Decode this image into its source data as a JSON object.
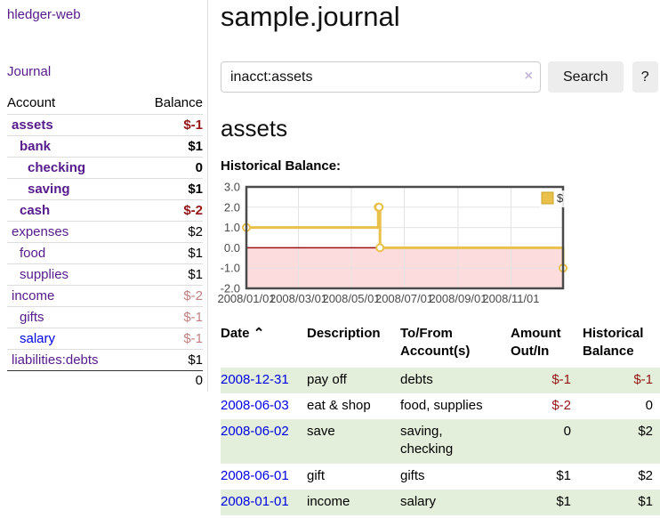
{
  "sidebar": {
    "app_title": "hledger-web",
    "journal_label": "Journal",
    "accounts_header": {
      "account": "Account",
      "balance": "Balance"
    },
    "accounts": [
      {
        "name": "assets",
        "level": 1,
        "bold": true,
        "link": "visited",
        "balance": "$-1",
        "neg": "strong"
      },
      {
        "name": "bank",
        "level": 2,
        "bold": true,
        "link": "visited",
        "balance": "$1"
      },
      {
        "name": "checking",
        "level": 3,
        "bold": true,
        "link": "visited",
        "balance": "0"
      },
      {
        "name": "saving",
        "level": 3,
        "bold": true,
        "link": "visited",
        "balance": "$1"
      },
      {
        "name": "cash",
        "level": 2,
        "bold": true,
        "link": "visited",
        "balance": "$-2",
        "neg": "strong"
      },
      {
        "name": "expenses",
        "level": 1,
        "bold": false,
        "link": "visited",
        "balance": "$2"
      },
      {
        "name": "food",
        "level": 2,
        "bold": false,
        "link": "visited",
        "balance": "$1"
      },
      {
        "name": "supplies",
        "level": 2,
        "bold": false,
        "link": "visited",
        "balance": "$1"
      },
      {
        "name": "income",
        "level": 1,
        "bold": false,
        "link": "visited",
        "balance": "$-2",
        "neg": "soft"
      },
      {
        "name": "gifts",
        "level": 2,
        "bold": false,
        "link": "visited",
        "balance": "$-1",
        "neg": "soft"
      },
      {
        "name": "salary",
        "level": 2,
        "bold": false,
        "link": "unvisited",
        "balance": "$-1",
        "neg": "soft"
      },
      {
        "name": "liabilities:debts",
        "level": 1,
        "bold": false,
        "link": "visited",
        "balance": "$1"
      }
    ],
    "total": "0"
  },
  "main": {
    "title": "sample.journal",
    "search": {
      "value": "inacct:assets",
      "clear_icon": "×",
      "button_label": "Search",
      "help_label": "?"
    },
    "account_heading": "assets",
    "register": {
      "headers": {
        "date": "Date",
        "sort_icon": "⌃",
        "description": "Description",
        "accounts": "To/From Account(s)",
        "amount": "Amount Out/In",
        "balance": "Historical Balance"
      },
      "rows": [
        {
          "date": "2008-12-31",
          "description": "pay off",
          "accounts": "debts",
          "amount": "$-1",
          "balance": "$-1"
        },
        {
          "date": "2008-06-03",
          "description": "eat & shop",
          "accounts": "food, supplies",
          "amount": "$-2",
          "balance": "0"
        },
        {
          "date": "2008-06-02",
          "description": "save",
          "accounts": "saving, checking",
          "amount": "0",
          "balance": "$2"
        },
        {
          "date": "2008-06-01",
          "description": "gift",
          "accounts": "gifts",
          "amount": "$1",
          "balance": "$2"
        },
        {
          "date": "2008-01-01",
          "description": "income",
          "accounts": "salary",
          "amount": "$1",
          "balance": "$1"
        }
      ]
    }
  },
  "chart_data": {
    "type": "line",
    "step": true,
    "title": "Historical Balance:",
    "xlim": [
      "2008-01-01",
      "2008-12-31"
    ],
    "ylim": [
      -2,
      3
    ],
    "y_ticks": [
      3,
      2,
      1,
      0,
      -1,
      -2
    ],
    "x_ticks": [
      "2008/01/01",
      "2008/03/01",
      "2008/05/01",
      "2008/07/01",
      "2008/09/01",
      "2008/11/01"
    ],
    "series": [
      {
        "name": "$",
        "color": "#e8c04a",
        "points": [
          [
            "2008-01-01",
            1
          ],
          [
            "2008-06-01",
            2
          ],
          [
            "2008-06-02",
            2
          ],
          [
            "2008-06-03",
            0
          ],
          [
            "2008-12-31",
            -1
          ]
        ]
      }
    ],
    "legend_position": "top-right",
    "grid": true,
    "negative_region_color": "#fcdcdc",
    "zero_line_color": "#991111",
    "colors_note": {
      "frame": "#4a4a4a",
      "gridline": "#e3e3e3",
      "tick_label": "#4a4a4a"
    }
  },
  "colors": {
    "link_visited": "#551a8b",
    "link_unvisited": "#0000e6",
    "negative_strong": "#941515",
    "negative_soft": "#c08080",
    "row_stripe_green": "#e3efda",
    "button_bg": "#ededed"
  }
}
